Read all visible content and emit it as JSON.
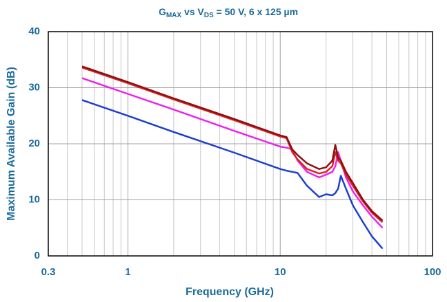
{
  "chart_data": {
    "type": "line",
    "title_parts": [
      "G",
      "MAX",
      " vs V",
      "DS",
      " = 50 V, 6 x 125 µm"
    ],
    "x_label": "Frequency (GHz)",
    "y_label": "Maximum Available Gain (dB)",
    "x_log": true,
    "xlim": [
      0.3,
      100
    ],
    "xticks": [
      0.3,
      1,
      10,
      100
    ],
    "x_minor_grid": [
      0.4,
      0.5,
      0.6,
      0.7,
      0.8,
      0.9,
      2,
      3,
      4,
      5,
      6,
      7,
      8,
      9,
      20,
      30,
      40,
      50,
      60,
      70,
      80,
      90
    ],
    "ylim": [
      0,
      40
    ],
    "yticks": [
      0,
      10,
      20,
      30,
      40
    ],
    "grid": true,
    "x": [
      0.5,
      1,
      2,
      5,
      10,
      11,
      12,
      13,
      15,
      18,
      20,
      22,
      23,
      24,
      25,
      27,
      30,
      35,
      40,
      47
    ],
    "series": [
      {
        "color": "#1f3fd0",
        "values": [
          27.8,
          25,
          22.1,
          18.4,
          15.5,
          15.2,
          15,
          14.8,
          12.5,
          10.5,
          11,
          10.8,
          11.2,
          12,
          14.3,
          12,
          9,
          6,
          3.5,
          1.3
        ]
      },
      {
        "color": "#ee22ee",
        "values": [
          31.7,
          28.9,
          26.1,
          22.3,
          19.5,
          19.3,
          19,
          17,
          15,
          14,
          14.5,
          15,
          16,
          18.5,
          17,
          14,
          11.5,
          9,
          7,
          5
        ]
      },
      {
        "color": "#e02020",
        "values": [
          33.6,
          30.8,
          27.9,
          24.2,
          21.3,
          21,
          18.5,
          17.2,
          15.5,
          14.7,
          15,
          16,
          18.5,
          17,
          16.5,
          14.5,
          12.5,
          9.7,
          7.7,
          6
        ]
      },
      {
        "color": "#8b1010",
        "values": [
          33.8,
          31,
          28.1,
          24.4,
          21.5,
          21.2,
          19,
          18,
          16.5,
          15.5,
          15.8,
          17,
          19.8,
          17.5,
          17,
          15,
          13,
          10,
          8,
          6.3
        ]
      }
    ]
  }
}
